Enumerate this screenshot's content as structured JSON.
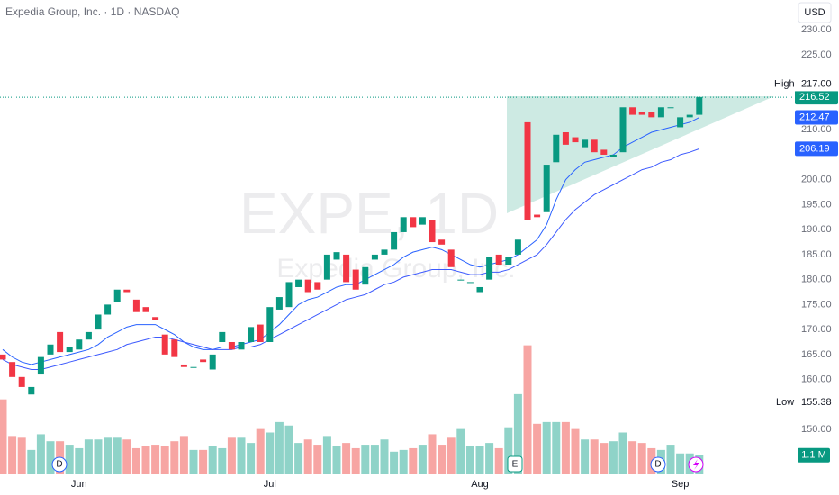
{
  "chart_data": {
    "type": "candlestick",
    "title": "Expedia Group, Inc. · 1D · NASDAQ",
    "watermark": "EXPE, 1D",
    "watermark_sub": "Expedia Group, Inc.",
    "currency": "USD",
    "categories": [
      null,
      null,
      null,
      null,
      null,
      null,
      null,
      null,
      "Jun",
      null,
      null,
      null,
      null,
      null,
      null,
      null,
      null,
      null,
      null,
      null,
      null,
      null,
      null,
      null,
      null,
      null,
      null,
      null,
      "Jul",
      null,
      null,
      null,
      null,
      null,
      null,
      null,
      null,
      null,
      null,
      null,
      null,
      null,
      null,
      null,
      null,
      null,
      null,
      null,
      null,
      null,
      "Aug",
      null,
      null,
      null,
      null,
      null,
      null,
      null,
      null,
      null,
      null,
      null,
      null,
      null,
      null,
      null,
      null,
      null,
      null,
      null,
      null,
      "Sep",
      null,
      null
    ],
    "open": [
      165,
      163.5,
      160.5,
      157,
      161,
      165,
      169.5,
      165.5,
      166,
      168,
      170,
      173,
      175.5,
      178,
      176,
      174.5,
      172.5,
      169,
      168,
      163,
      162.5,
      164,
      162,
      167.5,
      167.5,
      166,
      167.5,
      171,
      167.5,
      174,
      174.5,
      178.5,
      180,
      179.5,
      180,
      184,
      185,
      182,
      179,
      184,
      185,
      186,
      189.5,
      192.5,
      191,
      192,
      188,
      186,
      180,
      179.5,
      177.5,
      180,
      185,
      183,
      185,
      211.5,
      193,
      193.5,
      203.5,
      209.5,
      208.5,
      206.5,
      208,
      206,
      204.5,
      205.5,
      214.5,
      213.5,
      213.5,
      212.5,
      214.5,
      210.5,
      212.5,
      213
    ],
    "high": {
      "title": "High",
      "value": 217,
      "label": "217.00"
    },
    "low": {
      "title": "Low",
      "value": 155.38,
      "label": "155.38"
    },
    "close": [
      164,
      160.5,
      158.5,
      158.5,
      164.5,
      167,
      165.5,
      166.5,
      168,
      169.5,
      173,
      175,
      178,
      177.5,
      173.5,
      173.5,
      172,
      165,
      164.5,
      162.5,
      162.5,
      163.5,
      165,
      169.5,
      166,
      167.5,
      170.5,
      167.5,
      174.5,
      176.5,
      179.5,
      180,
      177.5,
      178,
      185,
      185.5,
      179.5,
      178,
      182.5,
      185,
      186,
      189.5,
      192.5,
      190.5,
      192.5,
      187.5,
      187,
      182.5,
      180,
      179.5,
      178.5,
      184.5,
      183,
      184.5,
      188,
      192,
      192.5,
      203,
      209,
      207,
      207.5,
      208,
      205.5,
      205,
      205,
      214.5,
      213,
      213,
      212.5,
      214.5,
      214.5,
      212.5,
      213,
      216.52
    ],
    "colors": {
      "up": "#089981",
      "down": "#f23645",
      "volume_up": "#8fd3c8",
      "volume_down": "#f7a5a3"
    },
    "volume": [
      4.3,
      2.2,
      2.1,
      1.4,
      2.3,
      1.9,
      1.9,
      1.7,
      1.5,
      2.0,
      2.0,
      2.1,
      2.1,
      2.0,
      1.5,
      1.6,
      1.7,
      1.6,
      1.9,
      2.2,
      1.4,
      1.4,
      1.6,
      1.5,
      2.1,
      2.1,
      1.8,
      2.6,
      2.4,
      3.0,
      2.8,
      1.8,
      2.0,
      1.7,
      2.2,
      1.6,
      1.8,
      1.5,
      1.7,
      1.7,
      2.0,
      1.3,
      1.4,
      1.5,
      1.7,
      2.3,
      1.7,
      2.1,
      2.6,
      1.6,
      1.6,
      1.8,
      1.5,
      2.7,
      4.6,
      7.4,
      2.9,
      3.0,
      3.0,
      3.0,
      2.6,
      2.0,
      2.0,
      1.8,
      1.9,
      2.4,
      1.9,
      1.8,
      1.5,
      1.4,
      1.7,
      1.2,
      1.2,
      1.1
    ],
    "volume_label": "1.1 M",
    "y2lim": [
      0,
      8
    ],
    "ma": [
      {
        "color": "#2962ff",
        "values": [
          166,
          164.5,
          163.5,
          163,
          163.5,
          164,
          164.5,
          165,
          165.5,
          166,
          167,
          168.5,
          169.5,
          170.5,
          171,
          171,
          171,
          170,
          169,
          167.5,
          166.5,
          166,
          166,
          166.5,
          166.5,
          167,
          167.5,
          168,
          169.5,
          171,
          173,
          175,
          176,
          176.5,
          177.5,
          178.5,
          179,
          179,
          180,
          181,
          182,
          183,
          184.5,
          185.5,
          186,
          186.5,
          186,
          185,
          184,
          183,
          182.5,
          183,
          183.5,
          184,
          185,
          186.5,
          188,
          191,
          196,
          200,
          202,
          203.5,
          204,
          204.5,
          205,
          206.5,
          207.5,
          208.5,
          209.5,
          210,
          210.5,
          211,
          211.5,
          212.47
        ]
      },
      {
        "color": "#3d5afe",
        "values": [
          164,
          163,
          162.5,
          162,
          162,
          162.5,
          163,
          163.5,
          164,
          164.5,
          165,
          165.5,
          166,
          167,
          167.5,
          168,
          168.5,
          168.5,
          168,
          167.5,
          167,
          166.5,
          166,
          166,
          166,
          166.5,
          166.5,
          167,
          168,
          169,
          170,
          171,
          172,
          173,
          174,
          175,
          176,
          176.5,
          177,
          178,
          179,
          179.5,
          180.5,
          181,
          181.5,
          182,
          182,
          182,
          181.5,
          181,
          181,
          181.5,
          181.5,
          182,
          183,
          184,
          185,
          187,
          189.5,
          192,
          194,
          195.5,
          197,
          198,
          199,
          200,
          201,
          202,
          202.5,
          203.5,
          204,
          205,
          205.5,
          206.19
        ]
      }
    ],
    "price_labels": [
      {
        "value": 216.52,
        "label": "216.52",
        "color": "#089981"
      },
      {
        "value": 212.47,
        "label": "212.47",
        "color": "#2962ff"
      },
      {
        "value": 206.19,
        "label": "206.19",
        "color": "#2962ff"
      }
    ],
    "events": [
      "D",
      "E",
      "D"
    ],
    "ylim": [
      141,
      236
    ],
    "yticks": [
      {
        "value": 230,
        "label": "230.00"
      },
      {
        "value": 225,
        "label": "225.00"
      },
      {
        "value": 210,
        "label": "210.00"
      },
      {
        "value": 200,
        "label": "200.00"
      },
      {
        "value": 195,
        "label": "195.00"
      },
      {
        "value": 190,
        "label": "190.00"
      },
      {
        "value": 185,
        "label": "185.00"
      },
      {
        "value": 180,
        "label": "180.00"
      },
      {
        "value": 175,
        "label": "175.00"
      },
      {
        "value": 170,
        "label": "170.00"
      },
      {
        "value": 165,
        "label": "165.00"
      },
      {
        "value": 160,
        "label": "160.00"
      },
      {
        "value": 150,
        "label": "150.00"
      }
    ]
  }
}
